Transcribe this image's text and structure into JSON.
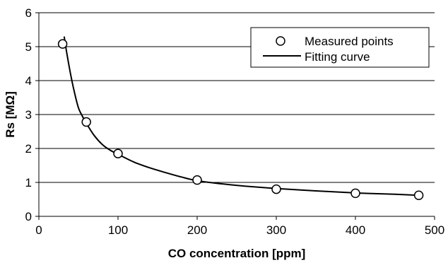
{
  "chart_data": {
    "type": "scatter",
    "title": "",
    "xlabel": "CO concentration [ppm]",
    "ylabel": "Rs [MΩ]",
    "xlim": [
      0,
      500
    ],
    "ylim": [
      0,
      6
    ],
    "x_ticks": [
      0,
      100,
      200,
      300,
      400,
      500
    ],
    "y_ticks": [
      0,
      1,
      2,
      3,
      4,
      5,
      6
    ],
    "grid": "horizontal",
    "legend_position": "top-right",
    "series": [
      {
        "name": "Measured points",
        "kind": "scatter",
        "marker": "open-circle",
        "x": [
          30,
          60,
          100,
          200,
          300,
          400,
          480
        ],
        "y": [
          5.08,
          2.78,
          1.85,
          1.07,
          0.8,
          0.68,
          0.62
        ]
      },
      {
        "name": "Fitting curve",
        "kind": "line",
        "color": "#000000",
        "x": [
          32,
          35,
          40,
          45,
          50,
          55,
          60,
          70,
          80,
          90,
          100,
          120,
          140,
          160,
          180,
          200,
          230,
          260,
          300,
          350,
          400,
          450,
          480
        ],
        "y": [
          5.3,
          4.85,
          4.2,
          3.65,
          3.2,
          2.95,
          2.74,
          2.38,
          2.12,
          1.95,
          1.83,
          1.6,
          1.43,
          1.29,
          1.16,
          1.05,
          0.96,
          0.89,
          0.82,
          0.75,
          0.69,
          0.65,
          0.62
        ]
      }
    ]
  }
}
